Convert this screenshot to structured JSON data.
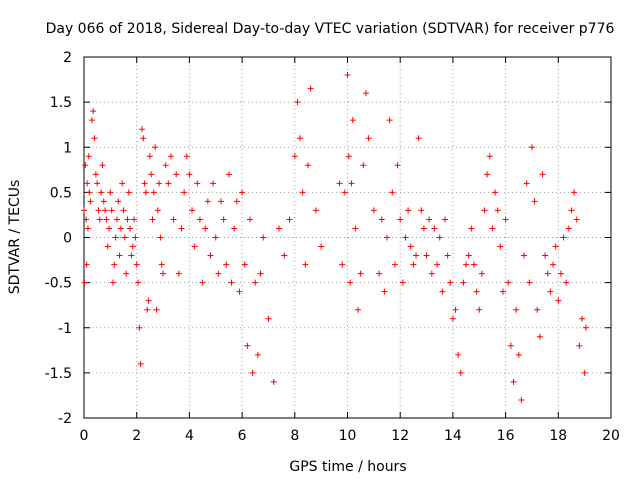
{
  "chart_data": {
    "type": "scatter",
    "title": "Day 066 of 2018, Sidereal Day-to-day VTEC variation (SDTVAR) for receiver p776",
    "xlabel": "GPS time / hours",
    "ylabel": "SDTVAR / TECUs",
    "xlim": [
      0,
      20
    ],
    "ylim": [
      -2,
      2
    ],
    "xticks": [
      0,
      2,
      4,
      6,
      8,
      10,
      12,
      14,
      16,
      18,
      20
    ],
    "yticks": [
      -2,
      -1.5,
      -1,
      -0.5,
      0,
      0.5,
      1,
      1.5,
      2
    ],
    "grid": true,
    "marker": "plus",
    "series": [
      {
        "name": "SDTVAR",
        "color": "#ff0000",
        "x": [
          0.0,
          0.02,
          0.05,
          0.08,
          0.1,
          0.12,
          0.15,
          0.18,
          0.2,
          0.25,
          0.3,
          0.35,
          0.4,
          0.45,
          0.5,
          0.55,
          0.6,
          0.65,
          0.7,
          0.75,
          0.8,
          0.85,
          0.9,
          0.95,
          1.0,
          1.05,
          1.1,
          1.15,
          1.2,
          1.25,
          1.3,
          1.35,
          1.4,
          1.45,
          1.5,
          1.55,
          1.6,
          1.65,
          1.7,
          1.75,
          1.8,
          1.85,
          1.9,
          1.95,
          2.0,
          2.05,
          2.1,
          2.15,
          2.2,
          2.25,
          2.3,
          2.35,
          2.4,
          2.45,
          2.5,
          2.55,
          2.6,
          2.65,
          2.7,
          2.75,
          2.8,
          2.85,
          2.9,
          2.95,
          3.0,
          3.1,
          3.2,
          3.3,
          3.4,
          3.5,
          3.6,
          3.7,
          3.8,
          3.9,
          4.0,
          4.1,
          4.2,
          4.3,
          4.4,
          4.5,
          4.6,
          4.7,
          4.8,
          4.9,
          5.0,
          5.1,
          5.2,
          5.3,
          5.4,
          5.5,
          5.6,
          5.7,
          5.8,
          5.9,
          6.0,
          6.1,
          6.2,
          6.3,
          6.4,
          6.5,
          6.6,
          6.7,
          6.8,
          7.0,
          7.2,
          7.4,
          7.6,
          7.8,
          8.0,
          8.1,
          8.2,
          8.3,
          8.4,
          8.5,
          8.6,
          8.8,
          9.0,
          9.7,
          9.8,
          9.9,
          10.0,
          10.05,
          10.1,
          10.15,
          10.2,
          10.3,
          10.4,
          10.5,
          10.6,
          10.7,
          10.8,
          11.0,
          11.2,
          11.3,
          11.4,
          11.5,
          11.6,
          11.7,
          11.8,
          11.9,
          12.0,
          12.1,
          12.2,
          12.3,
          12.4,
          12.5,
          12.6,
          12.7,
          12.8,
          12.9,
          13.0,
          13.1,
          13.2,
          13.3,
          13.4,
          13.5,
          13.6,
          13.7,
          13.8,
          13.9,
          14.0,
          14.1,
          14.2,
          14.3,
          14.4,
          14.5,
          14.6,
          14.7,
          14.8,
          14.9,
          15.0,
          15.1,
          15.2,
          15.3,
          15.4,
          15.5,
          15.6,
          15.7,
          15.8,
          15.9,
          16.0,
          16.1,
          16.2,
          16.3,
          16.4,
          16.5,
          16.6,
          16.7,
          16.8,
          16.9,
          17.0,
          17.1,
          17.2,
          17.3,
          17.4,
          17.5,
          17.6,
          17.7,
          17.8,
          17.9,
          18.0,
          18.1,
          18.2,
          18.3,
          18.4,
          18.5,
          18.6,
          18.7,
          18.8,
          18.9,
          19.0,
          19.05
        ],
        "y": [
          0.3,
          -0.5,
          0.8,
          0.2,
          -0.3,
          0.6,
          0.1,
          0.9,
          0.5,
          0.4,
          1.3,
          1.4,
          1.1,
          0.7,
          0.6,
          0.3,
          0.2,
          0.5,
          0.8,
          0.4,
          0.3,
          0.2,
          -0.1,
          0.1,
          0.5,
          0.3,
          -0.5,
          -0.3,
          0.0,
          0.2,
          0.4,
          -0.2,
          0.1,
          0.6,
          0.3,
          0.0,
          -0.4,
          0.2,
          0.5,
          0.1,
          -0.2,
          -0.1,
          0.2,
          0.0,
          -0.3,
          -0.5,
          -1.0,
          -1.4,
          1.2,
          1.1,
          0.6,
          0.5,
          -0.8,
          -0.7,
          0.9,
          0.7,
          0.2,
          0.5,
          1.0,
          -0.8,
          0.3,
          0.6,
          0.0,
          -0.3,
          -0.4,
          0.8,
          0.6,
          0.9,
          0.2,
          0.7,
          -0.4,
          0.1,
          0.5,
          0.9,
          0.7,
          0.3,
          -0.1,
          0.6,
          0.2,
          -0.5,
          0.1,
          0.4,
          -0.2,
          0.6,
          0.0,
          -0.4,
          0.4,
          0.2,
          -0.3,
          0.7,
          -0.5,
          0.1,
          0.4,
          -0.6,
          0.5,
          -0.3,
          -1.2,
          0.2,
          -1.5,
          -0.5,
          -1.3,
          -0.4,
          0.0,
          -0.9,
          -1.6,
          0.1,
          -0.2,
          0.2,
          0.9,
          1.5,
          1.1,
          0.5,
          -0.3,
          0.8,
          1.65,
          0.3,
          -0.1,
          0.6,
          -0.3,
          0.5,
          1.8,
          0.9,
          -0.5,
          0.6,
          1.3,
          0.1,
          -0.8,
          -0.4,
          0.8,
          1.6,
          1.1,
          0.3,
          -0.4,
          0.2,
          -0.6,
          0.0,
          1.3,
          0.5,
          -0.3,
          0.8,
          0.2,
          -0.5,
          0.0,
          0.3,
          -0.1,
          -0.3,
          -0.2,
          1.1,
          0.3,
          0.1,
          -0.2,
          0.2,
          -0.4,
          0.1,
          -0.3,
          0.0,
          -0.6,
          0.2,
          -0.2,
          -0.5,
          -0.9,
          -0.8,
          -1.3,
          -1.5,
          -0.5,
          -0.3,
          -0.2,
          0.1,
          -0.3,
          -0.6,
          -0.8,
          -0.4,
          0.3,
          0.7,
          0.9,
          0.1,
          0.5,
          0.3,
          -0.1,
          -0.6,
          0.2,
          -0.5,
          -1.2,
          -1.6,
          -0.8,
          -1.3,
          -1.8,
          -0.2,
          0.6,
          -0.5,
          1.0,
          0.4,
          -0.8,
          -1.1,
          0.7,
          -0.2,
          -0.4,
          -0.6,
          -0.3,
          -0.1,
          -0.7,
          -0.4,
          0.0,
          -0.5,
          0.1,
          0.3,
          0.5,
          0.2,
          -1.2,
          -0.9,
          -1.5,
          -1.0
        ]
      }
    ]
  }
}
